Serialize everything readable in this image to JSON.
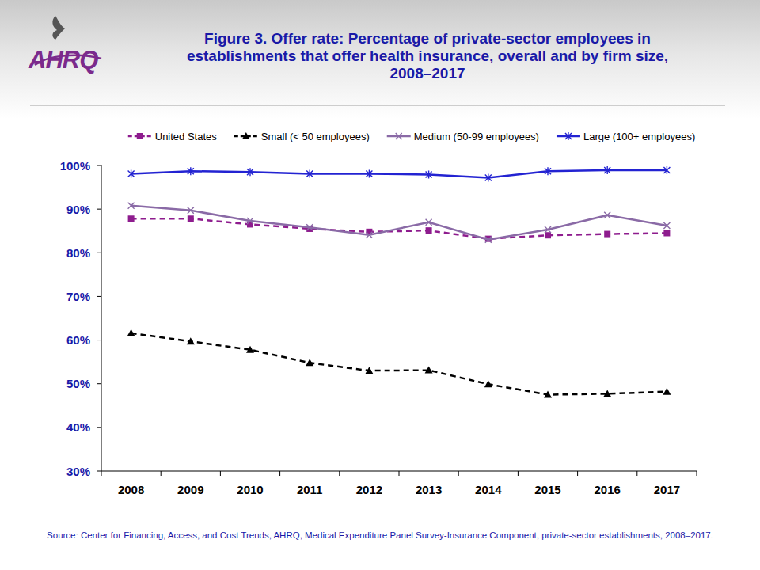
{
  "logo": "AHRQ",
  "chart_data": {
    "type": "line",
    "title": "Figure 3. Offer rate: Percentage of private-sector employees in establishments that offer health insurance, overall and by firm size, 2008–2017",
    "source": "Source: Center for Financing, Access, and Cost Trends, AHRQ, Medical Expenditure Panel Survey-Insurance Component, private-sector establishments, 2008–2017.",
    "categories": [
      "2008",
      "2009",
      "2010",
      "2011",
      "2012",
      "2013",
      "2014",
      "2015",
      "2016",
      "2017"
    ],
    "series": [
      {
        "name": "United States",
        "color": "#8e1c8e",
        "marker": "square",
        "line_style": "dashed",
        "values": [
          87.8,
          87.8,
          86.5,
          85.5,
          84.8,
          85.1,
          83.2,
          84.0,
          84.3,
          84.5
        ]
      },
      {
        "name": "Small (< 50 employees)",
        "color": "#000000",
        "marker": "triangle",
        "line_style": "dashed",
        "values": [
          61.6,
          59.7,
          57.8,
          54.8,
          53.0,
          53.1,
          49.9,
          47.5,
          47.7,
          48.2
        ]
      },
      {
        "name": "Medium (50-99 employees)",
        "color": "#8a6aa6",
        "marker": "x",
        "line_style": "solid",
        "values": [
          90.8,
          89.7,
          87.3,
          85.8,
          84.1,
          87.0,
          83.0,
          85.3,
          88.6,
          86.2
        ]
      },
      {
        "name": "Large (100+ employees)",
        "color": "#2323d2",
        "marker": "asterisk",
        "line_style": "solid",
        "values": [
          98.1,
          98.7,
          98.5,
          98.1,
          98.1,
          97.9,
          97.2,
          98.7,
          98.9,
          98.9
        ]
      }
    ],
    "ylim": [
      30,
      100
    ],
    "yticks": [
      {
        "value": 30,
        "label": "30%"
      },
      {
        "value": 40,
        "label": "40%"
      },
      {
        "value": 50,
        "label": "50%"
      },
      {
        "value": 60,
        "label": "60%"
      },
      {
        "value": 70,
        "label": "70%"
      },
      {
        "value": 80,
        "label": "80%"
      },
      {
        "value": 90,
        "label": "90%"
      },
      {
        "value": 100,
        "label": "100%"
      }
    ],
    "grid": false,
    "legend": "top"
  }
}
